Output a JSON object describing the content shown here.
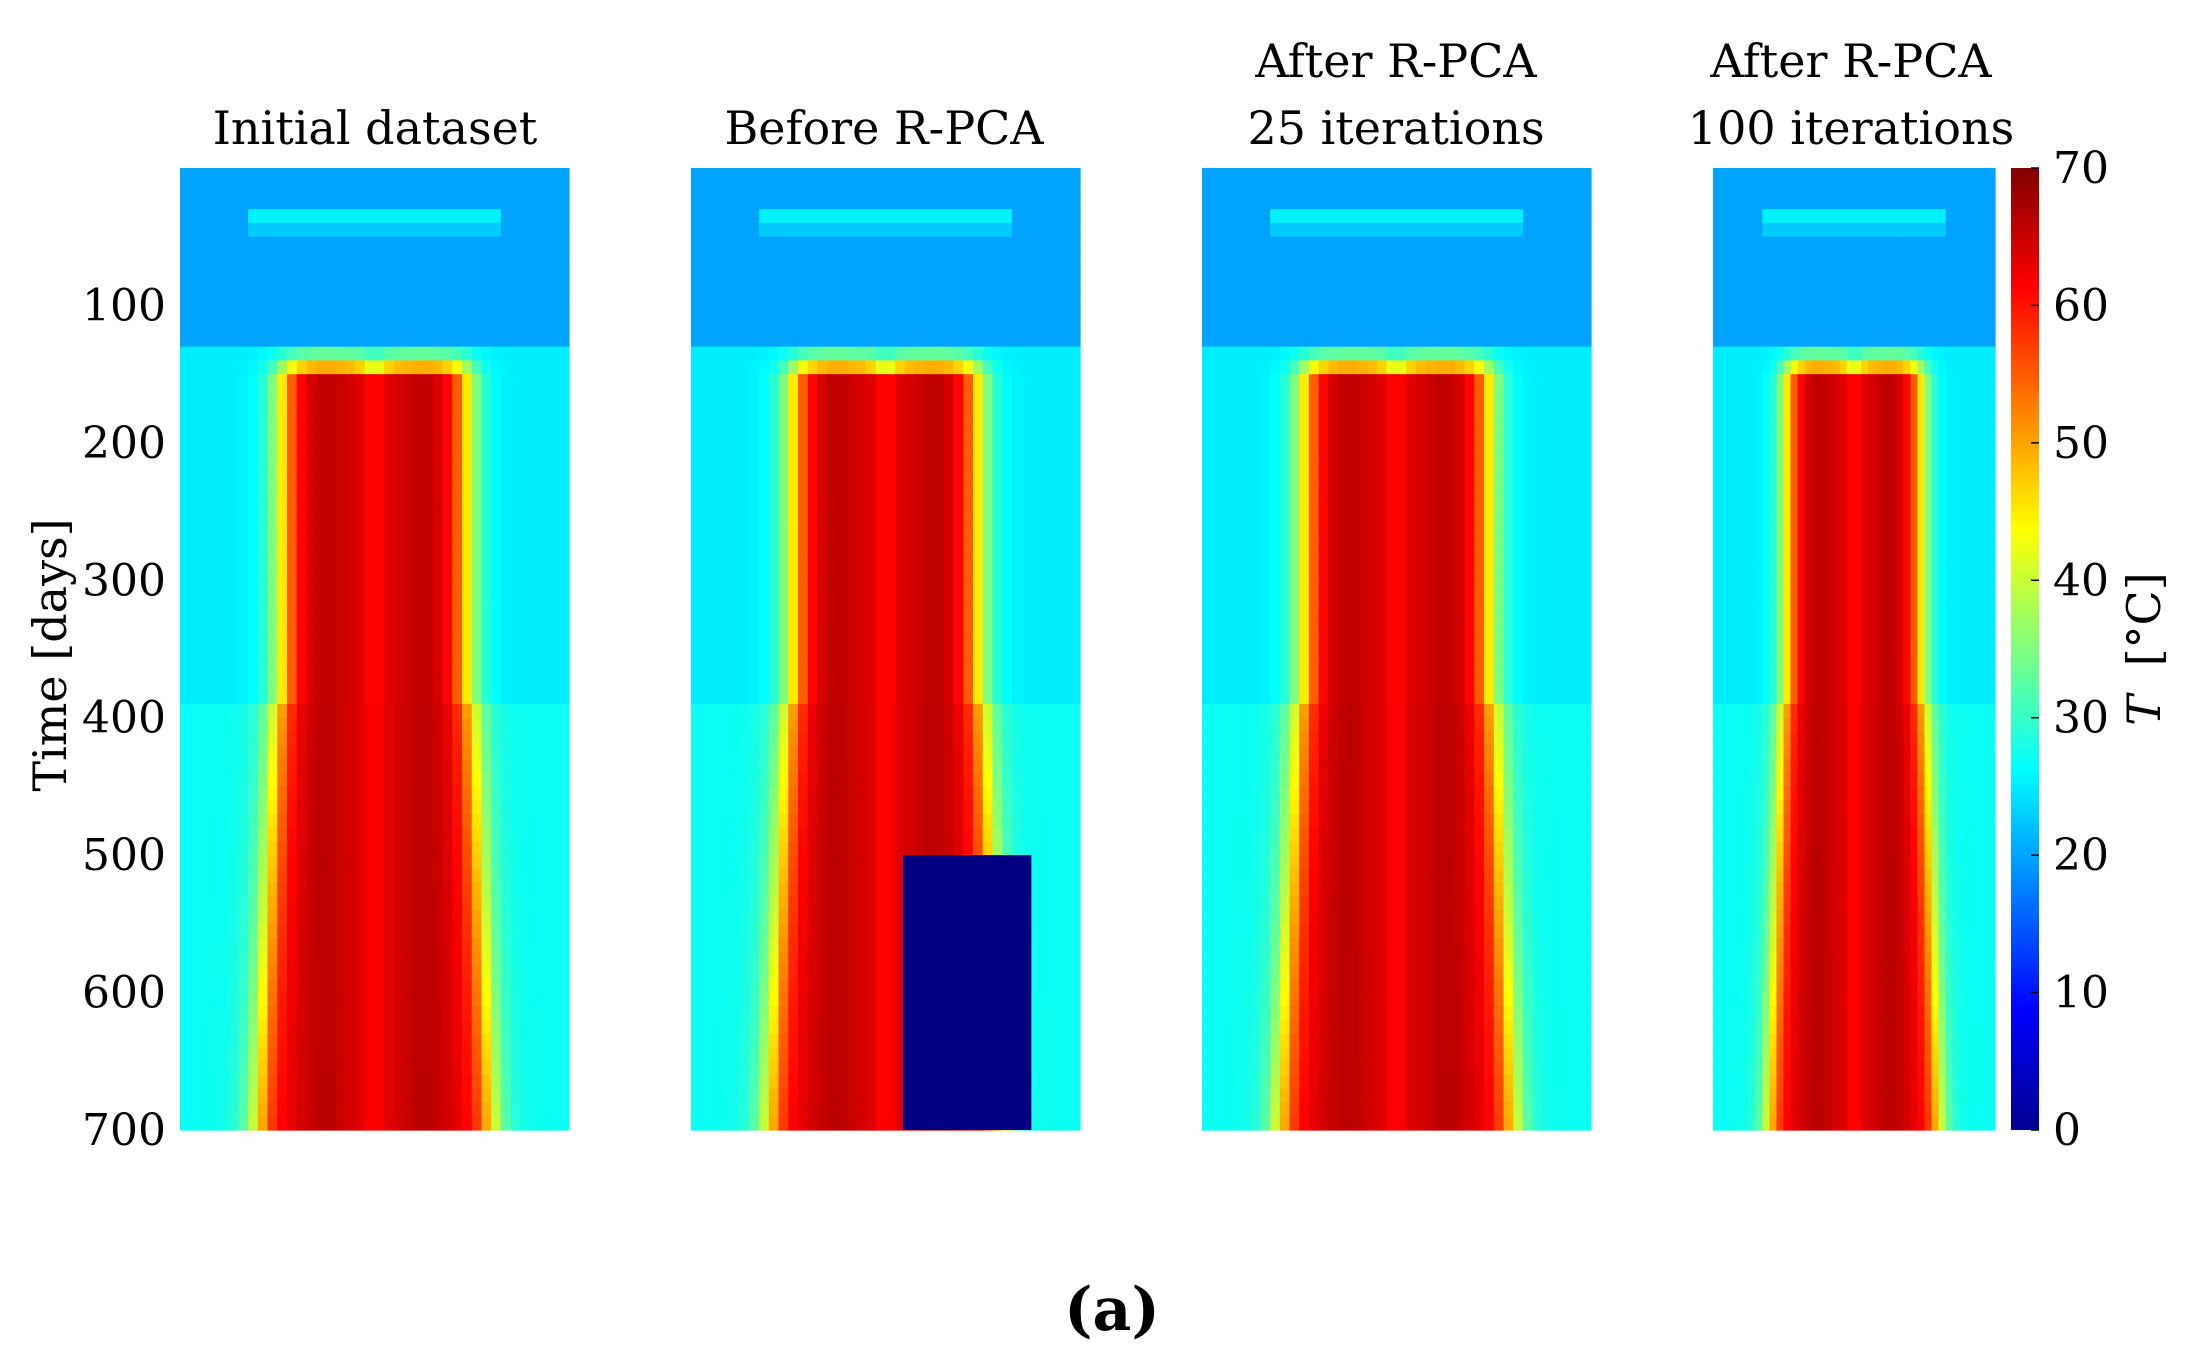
{
  "chart_data": {
    "type": "heatmap",
    "panels": [
      {
        "title_lines": [
          "Initial dataset"
        ],
        "missing_block": false
      },
      {
        "title_lines": [
          "Before R-PCA"
        ],
        "missing_block": true
      },
      {
        "title_lines": [
          "After R-PCA",
          "25 iterations"
        ],
        "missing_block": false
      },
      {
        "title_lines": [
          "After R-PCA",
          "100 iterations"
        ],
        "missing_block": false
      }
    ],
    "ylabel": "Time [days]",
    "ylim": [
      0,
      700
    ],
    "yticks": [
      100,
      200,
      300,
      400,
      500,
      600,
      700
    ],
    "y_inverted": true,
    "colorbar": {
      "label_var": "T",
      "label_unit": "[°C]",
      "range": [
        0,
        70
      ],
      "ticks": [
        0,
        10,
        20,
        30,
        40,
        50,
        60,
        70
      ],
      "colormap": "jet"
    },
    "missing_block": {
      "day_start": 500,
      "day_end": 700,
      "value": 0
    },
    "notes": {
      "ambient_temperature": 20,
      "peak_temperature": 70,
      "hot_phase_start_day": 130,
      "lower_section_start_day": 390
    }
  },
  "caption": "(a)"
}
